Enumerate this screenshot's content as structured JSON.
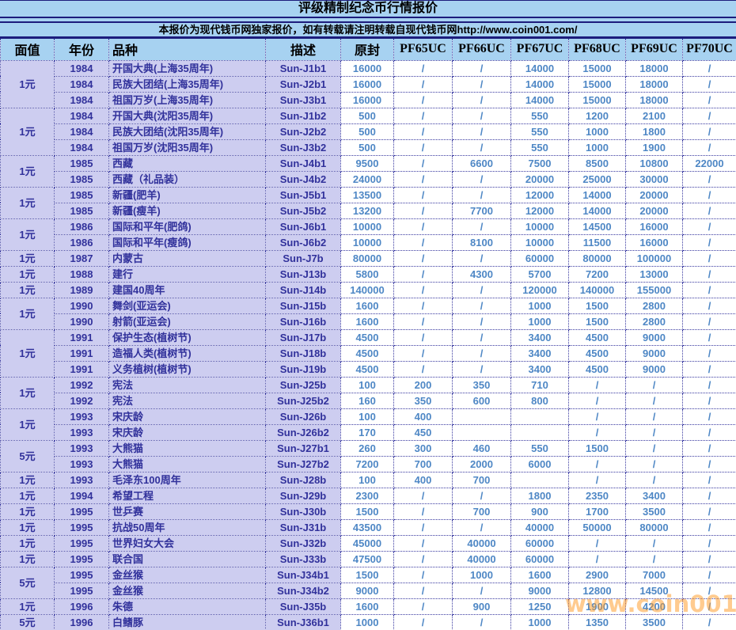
{
  "page": {
    "title": "评级精制纪念币行情报价",
    "subtitle": "本报价为现代钱币网独家报价，如有转载请注明转载自现代钱币网http://www.coin001.com/",
    "watermark": "www.coin001.com"
  },
  "colors": {
    "band_blue": "#a7d2f1",
    "navy_line": "#1c1c7c",
    "dotted_border": "#3939a0",
    "lavender_cell": "#cdcdf0",
    "dark_text": "#31319b",
    "price_text": "#4e87c5",
    "watermark_orange": "#ff9922"
  },
  "table": {
    "columns": [
      "面值",
      "年份",
      "品种",
      "描述",
      "原封",
      "PF65UC",
      "PF66UC",
      "PF67UC",
      "PF68UC",
      "PF69UC",
      "PF70UC"
    ],
    "rows": [
      {
        "face": "1元",
        "face_span": 3,
        "year": "1984",
        "name": "开国大典(上海35周年)",
        "desc": "Sun-J1b1",
        "prices": [
          "16000",
          "/",
          "/",
          "14000",
          "15000",
          "18000",
          "/"
        ]
      },
      {
        "year": "1984",
        "name": "民族大团结(上海35周年)",
        "desc": "Sun-J2b1",
        "prices": [
          "16000",
          "/",
          "/",
          "14000",
          "15000",
          "18000",
          "/"
        ]
      },
      {
        "year": "1984",
        "name": "祖国万岁(上海35周年)",
        "desc": "Sun-J3b1",
        "prices": [
          "16000",
          "/",
          "/",
          "14000",
          "15000",
          "18000",
          "/"
        ]
      },
      {
        "face": "1元",
        "face_span": 3,
        "year": "1984",
        "name": "开国大典(沈阳35周年)",
        "desc": "Sun-J1b2",
        "prices": [
          "500",
          "/",
          "/",
          "550",
          "1200",
          "2100",
          "/"
        ]
      },
      {
        "year": "1984",
        "name": "民族大团结(沈阳35周年)",
        "desc": "Sun-J2b2",
        "prices": [
          "500",
          "/",
          "/",
          "550",
          "1000",
          "1800",
          "/"
        ]
      },
      {
        "year": "1984",
        "name": "祖国万岁(沈阳35周年)",
        "desc": "Sun-J3b2",
        "prices": [
          "500",
          "/",
          "/",
          "550",
          "1000",
          "1900",
          "/"
        ]
      },
      {
        "face": "1元",
        "face_span": 2,
        "year": "1985",
        "name": "西藏",
        "desc": "Sun-J4b1",
        "prices": [
          "9500",
          "/",
          "6600",
          "7500",
          "8500",
          "10800",
          "22000"
        ]
      },
      {
        "year": "1985",
        "name": "西藏（礼品装）",
        "desc": "Sun-J4b2",
        "prices": [
          "24000",
          "/",
          "/",
          "20000",
          "25000",
          "30000",
          "/"
        ]
      },
      {
        "face": "1元",
        "face_span": 2,
        "year": "1985",
        "name": "新疆(肥羊)",
        "desc": "Sun-J5b1",
        "prices": [
          "13500",
          "/",
          "/",
          "12000",
          "14000",
          "20000",
          "/"
        ]
      },
      {
        "year": "1985",
        "name": "新疆(瘦羊)",
        "desc": "Sun-J5b2",
        "prices": [
          "13200",
          "/",
          "7700",
          "12000",
          "14000",
          "20000",
          "/"
        ]
      },
      {
        "face": "1元",
        "face_span": 2,
        "year": "1986",
        "name": "国际和平年(肥鸽)",
        "desc": "Sun-J6b1",
        "prices": [
          "10000",
          "/",
          "/",
          "10000",
          "14500",
          "16000",
          "/"
        ]
      },
      {
        "year": "1986",
        "name": "国际和平年(瘦鸽)",
        "desc": "Sun-J6b2",
        "prices": [
          "10000",
          "/",
          "8100",
          "10000",
          "11500",
          "16000",
          "/"
        ]
      },
      {
        "face": "1元",
        "face_span": 1,
        "year": "1987",
        "name": "内蒙古",
        "desc": "Sun-J7b",
        "prices": [
          "80000",
          "/",
          "/",
          "60000",
          "80000",
          "100000",
          "/"
        ]
      },
      {
        "face": "1元",
        "face_span": 1,
        "year": "1988",
        "name": "建行",
        "desc": "Sun-J13b",
        "prices": [
          "5800",
          "/",
          "4300",
          "5700",
          "7200",
          "13000",
          "/"
        ]
      },
      {
        "face": "1元",
        "face_span": 1,
        "year": "1989",
        "name": "建国40周年",
        "desc": "Sun-J14b",
        "prices": [
          "140000",
          "/",
          "/",
          "120000",
          "140000",
          "155000",
          "/"
        ]
      },
      {
        "face": "1元",
        "face_span": 2,
        "year": "1990",
        "name": "舞剑(亚运会)",
        "desc": "Sun-J15b",
        "prices": [
          "1600",
          "/",
          "/",
          "1000",
          "1500",
          "2800",
          "/"
        ]
      },
      {
        "year": "1990",
        "name": "射箭(亚运会)",
        "desc": "Sun-J16b",
        "prices": [
          "1600",
          "/",
          "/",
          "1000",
          "1500",
          "2800",
          "/"
        ]
      },
      {
        "face": "1元",
        "face_span": 3,
        "year": "1991",
        "name": "保护生态(植树节)",
        "desc": "Sun-J17b",
        "prices": [
          "4500",
          "/",
          "/",
          "3400",
          "4500",
          "9000",
          "/"
        ]
      },
      {
        "year": "1991",
        "name": "造福人类(植树节)",
        "desc": "Sun-J18b",
        "prices": [
          "4500",
          "/",
          "/",
          "3400",
          "4500",
          "9000",
          "/"
        ]
      },
      {
        "year": "1991",
        "name": "义务植树(植树节)",
        "desc": "Sun-J19b",
        "prices": [
          "4500",
          "/",
          "/",
          "3400",
          "4500",
          "9000",
          "/"
        ]
      },
      {
        "face": "1元",
        "face_span": 2,
        "year": "1992",
        "name": "宪法",
        "desc": "Sun-J25b",
        "prices": [
          "100",
          "200",
          "350",
          "710",
          "/",
          "/",
          "/"
        ]
      },
      {
        "year": "1992",
        "name": "宪法",
        "desc": "Sun-J25b2",
        "prices": [
          "160",
          "350",
          "600",
          "800",
          "/",
          "/",
          "/"
        ]
      },
      {
        "face": "1元",
        "face_span": 2,
        "year": "1993",
        "name": "宋庆龄",
        "desc": "Sun-J26b",
        "prices": [
          "100",
          "400",
          "",
          "",
          "/",
          "/",
          "/"
        ]
      },
      {
        "year": "1993",
        "name": "宋庆龄",
        "desc": "Sun-J26b2",
        "prices": [
          "170",
          "450",
          "",
          "",
          "/",
          "/",
          "/"
        ]
      },
      {
        "face": "5元",
        "face_span": 2,
        "year": "1993",
        "name": "大熊猫",
        "desc": "Sun-J27b1",
        "prices": [
          "260",
          "300",
          "460",
          "550",
          "1500",
          "/",
          "/"
        ]
      },
      {
        "year": "1993",
        "name": "大熊猫",
        "desc": "Sun-J27b2",
        "prices": [
          "7200",
          "700",
          "2000",
          "6000",
          "/",
          "/",
          "/"
        ]
      },
      {
        "face": "1元",
        "face_span": 1,
        "year": "1993",
        "name": "毛泽东100周年",
        "desc": "Sun-J28b",
        "prices": [
          "100",
          "400",
          "700",
          "",
          "/",
          "/",
          "/"
        ]
      },
      {
        "face": "1元",
        "face_span": 1,
        "year": "1994",
        "name": "希望工程",
        "desc": "Sun-J29b",
        "prices": [
          "2300",
          "/",
          "/",
          "1800",
          "2350",
          "3400",
          "/"
        ]
      },
      {
        "face": "1元",
        "face_span": 1,
        "year": "1995",
        "name": "世乒赛",
        "desc": "Sun-J30b",
        "prices": [
          "1500",
          "/",
          "700",
          "900",
          "1700",
          "3500",
          "/"
        ]
      },
      {
        "face": "1元",
        "face_span": 1,
        "year": "1995",
        "name": "抗战50周年",
        "desc": "Sun-J31b",
        "prices": [
          "43500",
          "/",
          "/",
          "40000",
          "50000",
          "80000",
          "/"
        ]
      },
      {
        "face": "1元",
        "face_span": 1,
        "year": "1995",
        "name": "世界妇女大会",
        "desc": "Sun-J32b",
        "prices": [
          "45000",
          "/",
          "40000",
          "60000",
          "/",
          "/",
          "/"
        ]
      },
      {
        "face": "1元",
        "face_span": 1,
        "year": "1995",
        "name": "联合国",
        "desc": "Sun-J33b",
        "prices": [
          "47500",
          "/",
          "40000",
          "60000",
          "/",
          "/",
          "/"
        ]
      },
      {
        "face": "5元",
        "face_span": 2,
        "year": "1995",
        "name": "金丝猴",
        "desc": "Sun-J34b1",
        "prices": [
          "1500",
          "/",
          "1000",
          "1600",
          "2900",
          "7000",
          "/"
        ]
      },
      {
        "year": "1995",
        "name": "金丝猴",
        "desc": "Sun-J34b2",
        "prices": [
          "9000",
          "/",
          "/",
          "9000",
          "12800",
          "14500",
          "/"
        ]
      },
      {
        "face": "1元",
        "face_span": 1,
        "year": "1996",
        "name": "朱德",
        "desc": "Sun-J35b",
        "prices": [
          "1600",
          "/",
          "900",
          "1250",
          "1900",
          "4200",
          "/"
        ]
      },
      {
        "face": "5元",
        "face_span": 1,
        "year": "1996",
        "name": "白鳍豚",
        "desc": "Sun-J36b1",
        "prices": [
          "1000",
          "/",
          "/",
          "1000",
          "1350",
          "3500",
          "/"
        ]
      }
    ]
  }
}
